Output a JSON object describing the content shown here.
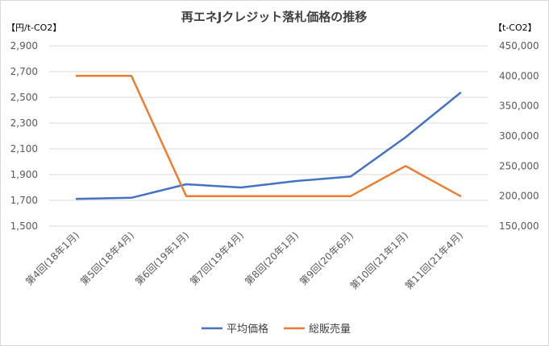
{
  "chart_data": {
    "type": "line",
    "title": "再エネJクレジット落札価格の推移",
    "y_left_unit": "【円/t-CO2】",
    "y_right_unit": "【t-CO2】",
    "categories": [
      "第4回(18年1月)",
      "第5回(18年4月)",
      "第6回(19年1月)",
      "第7回(19年4月)",
      "第8回(20年1月)",
      "第9回(20年6月)",
      "第10回(21年1月)",
      "第11回(21年4月)"
    ],
    "y_left": {
      "min": 1500,
      "max": 2900,
      "step": 200
    },
    "y_right": {
      "min": 150000,
      "max": 450000,
      "step": 50000
    },
    "y_left_ticks": [
      "1,500",
      "1,700",
      "1,900",
      "2,100",
      "2,300",
      "2,500",
      "2,700",
      "2,900"
    ],
    "y_right_ticks": [
      "150,000",
      "200,000",
      "250,000",
      "300,000",
      "350,000",
      "400,000",
      "450,000"
    ],
    "series": [
      {
        "name": "平均価格",
        "axis": "left",
        "color": "#4472C4",
        "values": [
          1712,
          1720,
          1825,
          1800,
          1850,
          1885,
          2190,
          2535
        ]
      },
      {
        "name": "総販売量",
        "axis": "right",
        "color": "#ED7D31",
        "values": [
          400000,
          400000,
          200000,
          200000,
          200000,
          200000,
          250000,
          200000
        ]
      }
    ],
    "grid": "horizontal",
    "legend": "bottom"
  }
}
